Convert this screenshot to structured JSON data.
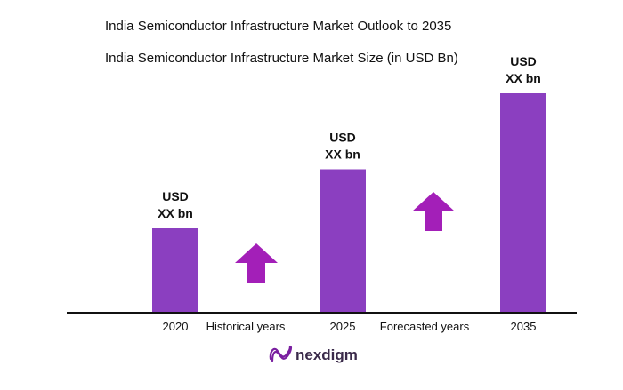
{
  "chart_data": {
    "type": "bar",
    "title": "India Semiconductor Infrastructure Market Outlook to 2035",
    "subtitle": "India Semiconductor Infrastructure Market Size (in USD Bn)",
    "categories": [
      "2020",
      "2025",
      "2035"
    ],
    "values": [
      1,
      1.7,
      2.6
    ],
    "value_labels": [
      [
        "USD",
        "XX bn"
      ],
      [
        "USD",
        "XX bn"
      ],
      [
        "USD",
        "XX bn"
      ]
    ],
    "period_labels": [
      "Historical years",
      "Forecasted years"
    ],
    "grid": false,
    "bar_color": "#8b3fc0",
    "arrow_color": "#a31fb8"
  },
  "brand": {
    "name": "nexdigm",
    "color": "#7a1fa0"
  }
}
